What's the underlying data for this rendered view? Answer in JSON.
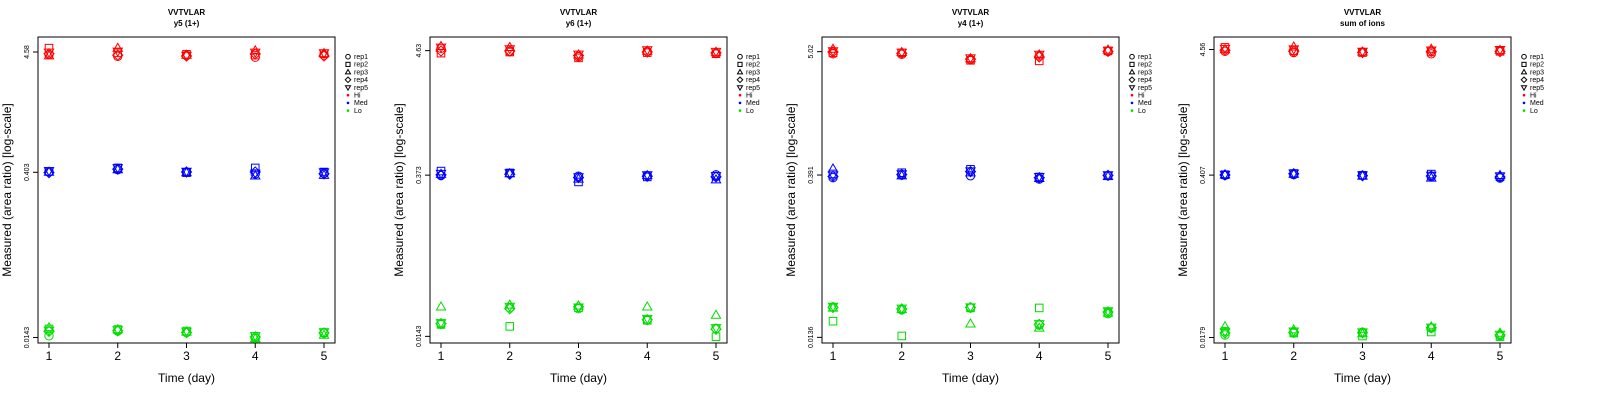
{
  "figure": {
    "title": "VVTVLAR",
    "xlabel": "Time (day)",
    "ylabel": "Measured (area ratio) [log-scale]"
  },
  "legend": {
    "reps": [
      {
        "label": "rep1",
        "shape": "circle"
      },
      {
        "label": "rep2",
        "shape": "square"
      },
      {
        "label": "rep3",
        "shape": "triangle-up"
      },
      {
        "label": "rep4",
        "shape": "diamond"
      },
      {
        "label": "rep5",
        "shape": "triangle-down"
      }
    ],
    "levels": [
      {
        "label": "Hi",
        "color": "#ff0000"
      },
      {
        "label": "Med",
        "color": "#0000ff"
      },
      {
        "label": "Lo",
        "color": "#00dd00"
      }
    ]
  },
  "chart_data": [
    {
      "type": "scatter",
      "title": "VVTVLAR",
      "subtitle": "y5 (1+)",
      "xlabel": "Time (day)",
      "ylabel": "Measured (area ratio) [log-scale]",
      "yscale": "log",
      "x": [
        1,
        2,
        3,
        4,
        5
      ],
      "xticks": [
        "1",
        "2",
        "3",
        "4",
        "5"
      ],
      "yticks": [
        {
          "value": 0.0143,
          "label": "0.0143"
        },
        {
          "value": 0.403,
          "label": "0.403"
        },
        {
          "value": 4.58,
          "label": "4.58"
        }
      ],
      "ylim": [
        0.0128,
        6.2
      ],
      "legend_position": "right",
      "series": [
        {
          "name": "Hi",
          "color": "#ff0000",
          "points": {
            "rep1": [
              4.35,
              4.2,
              4.27,
              4.12,
              4.3
            ],
            "rep2": [
              4.95,
              4.5,
              4.37,
              4.3,
              4.42
            ],
            "rep3": [
              4.25,
              4.95,
              4.3,
              4.7,
              4.45
            ],
            "rep4": [
              4.42,
              4.3,
              4.22,
              4.4,
              4.22
            ],
            "rep5": [
              4.55,
              4.65,
              4.27,
              4.55,
              4.5
            ]
          }
        },
        {
          "name": "Med",
          "color": "#0000ff",
          "points": {
            "rep1": [
              0.405,
              0.425,
              0.405,
              0.39,
              0.395
            ],
            "rep2": [
              0.41,
              0.44,
              0.4,
              0.44,
              0.405
            ],
            "rep3": [
              0.405,
              0.425,
              0.4,
              0.375,
              0.38
            ],
            "rep4": [
              0.4,
              0.43,
              0.405,
              0.405,
              0.39
            ],
            "rep5": [
              0.415,
              0.44,
              0.41,
              0.395,
              0.405
            ]
          }
        },
        {
          "name": "Lo",
          "color": "#00dd00",
          "points": {
            "rep1": [
              0.0148,
              0.0163,
              0.0158,
              0.0141,
              0.0156
            ],
            "rep2": [
              0.017,
              0.0168,
              0.0163,
              0.0146,
              0.0158
            ],
            "rep3": [
              0.0175,
              0.0168,
              0.016,
              0.014,
              0.015
            ],
            "rep4": [
              0.0162,
              0.0164,
              0.0158,
              0.0145,
              0.0157
            ],
            "rep5": [
              0.0165,
              0.0167,
              0.0162,
              0.0148,
              0.016
            ]
          }
        }
      ]
    },
    {
      "type": "scatter",
      "title": "VVTVLAR",
      "subtitle": "y6 (1+)",
      "xlabel": "Time (day)",
      "ylabel": "Measured (area ratio) [log-scale]",
      "yscale": "log",
      "x": [
        1,
        2,
        3,
        4,
        5
      ],
      "xticks": [
        "1",
        "2",
        "3",
        "4",
        "5"
      ],
      "yticks": [
        {
          "value": 0.0143,
          "label": "0.0143"
        },
        {
          "value": 0.373,
          "label": "0.373"
        },
        {
          "value": 4.63,
          "label": "4.63"
        }
      ],
      "ylim": [
        0.0125,
        6.1
      ],
      "legend_position": "right",
      "series": [
        {
          "name": "Hi",
          "color": "#ff0000",
          "points": {
            "rep1": [
              4.85,
              4.55,
              4.1,
              4.55,
              4.4
            ],
            "rep2": [
              4.4,
              4.5,
              4.0,
              4.45,
              4.35
            ],
            "rep3": [
              5.05,
              4.95,
              4.25,
              4.6,
              4.5
            ],
            "rep4": [
              4.6,
              4.6,
              4.2,
              4.5,
              4.42
            ],
            "rep5": [
              4.95,
              4.8,
              4.3,
              4.7,
              4.55
            ]
          }
        },
        {
          "name": "Med",
          "color": "#0000ff",
          "points": {
            "rep1": [
              0.37,
              0.385,
              0.365,
              0.37,
              0.375
            ],
            "rep2": [
              0.405,
              0.39,
              0.325,
              0.36,
              0.365
            ],
            "rep3": [
              0.38,
              0.385,
              0.345,
              0.37,
              0.34
            ],
            "rep4": [
              0.375,
              0.38,
              0.355,
              0.365,
              0.36
            ],
            "rep5": [
              0.385,
              0.39,
              0.36,
              0.375,
              0.368
            ]
          }
        },
        {
          "name": "Lo",
          "color": "#00dd00",
          "points": {
            "rep1": [
              0.0183,
              0.0255,
              0.025,
              0.0198,
              0.0168
            ],
            "rep2": [
              0.0182,
              0.0175,
              0.0255,
              0.0198,
              0.0142
            ],
            "rep3": [
              0.026,
              0.027,
              0.0265,
              0.026,
              0.022
            ],
            "rep4": [
              0.0185,
              0.025,
              0.026,
              0.02,
              0.0165
            ],
            "rep5": [
              0.0188,
              0.0262,
              0.0258,
              0.0205,
              0.017
            ]
          }
        }
      ]
    },
    {
      "type": "scatter",
      "title": "VVTVLAR",
      "subtitle": "y4 (1+)",
      "xlabel": "Time (day)",
      "ylabel": "Measured (area ratio) [log-scale]",
      "yscale": "log",
      "x": [
        1,
        2,
        3,
        4,
        5
      ],
      "xticks": [
        "1",
        "2",
        "3",
        "4",
        "5"
      ],
      "yticks": [
        {
          "value": 0.0136,
          "label": "0.0136"
        },
        {
          "value": 0.391,
          "label": "0.391"
        },
        {
          "value": 5.02,
          "label": "5.02"
        }
      ],
      "ylim": [
        0.0121,
        6.8
      ],
      "legend_position": "right",
      "series": [
        {
          "name": "Hi",
          "color": "#ff0000",
          "points": {
            "rep1": [
              4.8,
              4.75,
              4.25,
              4.6,
              5.05
            ],
            "rep2": [
              4.9,
              4.9,
              4.2,
              4.15,
              5.1
            ],
            "rep3": [
              5.3,
              4.95,
              4.35,
              4.7,
              5.2
            ],
            "rep4": [
              5.0,
              4.85,
              4.3,
              4.5,
              5.05
            ],
            "rep5": [
              5.1,
              4.95,
              4.4,
              4.75,
              5.15
            ]
          }
        },
        {
          "name": "Med",
          "color": "#0000ff",
          "points": {
            "rep1": [
              0.37,
              0.39,
              0.385,
              0.36,
              0.385
            ],
            "rep2": [
              0.4,
              0.41,
              0.44,
              0.375,
              0.385
            ],
            "rep3": [
              0.445,
              0.385,
              0.41,
              0.365,
              0.38
            ],
            "rep4": [
              0.38,
              0.395,
              0.42,
              0.37,
              0.388
            ],
            "rep5": [
              0.39,
              0.4,
              0.425,
              0.378,
              0.392
            ]
          }
        },
        {
          "name": "Lo",
          "color": "#00dd00",
          "points": {
            "rep1": [
              0.0255,
              0.024,
              0.025,
              0.0175,
              0.0222
            ],
            "rep2": [
              0.019,
              0.014,
              0.025,
              0.025,
              0.0228
            ],
            "rep3": [
              0.025,
              0.0242,
              0.018,
              0.0165,
              0.0225
            ],
            "rep4": [
              0.0252,
              0.0245,
              0.0252,
              0.0178,
              0.023
            ],
            "rep5": [
              0.0258,
              0.0248,
              0.0255,
              0.018,
              0.0235
            ]
          }
        }
      ]
    },
    {
      "type": "scatter",
      "title": "VVTVLAR",
      "subtitle": "sum of ions",
      "xlabel": "Time (day)",
      "ylabel": "Measured (area ratio) [log-scale]",
      "yscale": "log",
      "x": [
        1,
        2,
        3,
        4,
        5
      ],
      "xticks": [
        "1",
        "2",
        "3",
        "4",
        "5"
      ],
      "yticks": [
        {
          "value": 0.0179,
          "label": "0.0179"
        },
        {
          "value": 0.407,
          "label": "0.407"
        },
        {
          "value": 4.56,
          "label": "4.56"
        }
      ],
      "ylim": [
        0.0161,
        5.8
      ],
      "legend_position": "right",
      "series": [
        {
          "name": "Hi",
          "color": "#ff0000",
          "points": {
            "rep1": [
              4.4,
              4.3,
              4.35,
              4.2,
              4.45
            ],
            "rep2": [
              4.75,
              4.45,
              4.3,
              4.35,
              4.4
            ],
            "rep3": [
              4.55,
              4.8,
              4.35,
              4.6,
              4.5
            ],
            "rep4": [
              4.5,
              4.4,
              4.3,
              4.4,
              4.38
            ],
            "rep5": [
              4.65,
              4.6,
              4.4,
              4.5,
              4.55
            ]
          }
        },
        {
          "name": "Med",
          "color": "#0000ff",
          "points": {
            "rep1": [
              0.405,
              0.41,
              0.405,
              0.395,
              0.385
            ],
            "rep2": [
              0.41,
              0.42,
              0.405,
              0.415,
              0.395
            ],
            "rep3": [
              0.41,
              0.415,
              0.4,
              0.385,
              0.405
            ],
            "rep4": [
              0.408,
              0.418,
              0.402,
              0.4,
              0.392
            ],
            "rep5": [
              0.412,
              0.422,
              0.408,
              0.405,
              0.4
            ]
          }
        },
        {
          "name": "Lo",
          "color": "#00dd00",
          "points": {
            "rep1": [
              0.0188,
              0.0195,
              0.0198,
              0.0214,
              0.0185
            ],
            "rep2": [
              0.0202,
              0.0195,
              0.0184,
              0.0199,
              0.0182
            ],
            "rep3": [
              0.0221,
              0.0208,
              0.0193,
              0.022,
              0.0195
            ],
            "rep4": [
              0.0195,
              0.0198,
              0.0196,
              0.0216,
              0.0188
            ],
            "rep5": [
              0.02,
              0.0202,
              0.0199,
              0.0218,
              0.019
            ]
          }
        }
      ]
    }
  ]
}
